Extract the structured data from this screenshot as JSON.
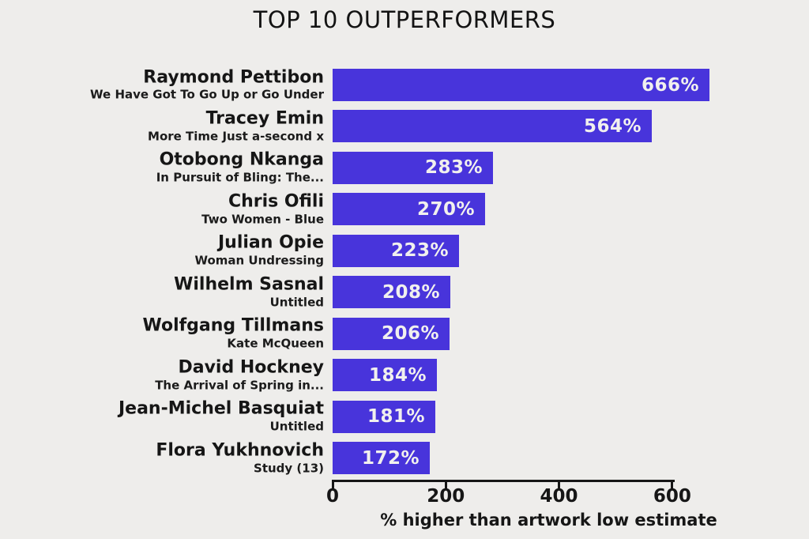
{
  "title": "TOP 10 OUTPERFORMERS",
  "colors": {
    "background": "#eeedeb",
    "bar": "#4834db",
    "bar_value_text": "#f1f0ee",
    "text": "#161616"
  },
  "chart_data": {
    "type": "bar",
    "orientation": "horizontal",
    "title": "TOP 10 OUTPERFORMERS",
    "xlabel": "% higher than artwork low estimate",
    "ylabel": "",
    "xlim": [
      0,
      765
    ],
    "xticks": [
      0,
      200,
      400,
      600
    ],
    "xtick_labels": [
      "0",
      "200",
      "400",
      "600"
    ],
    "grid": false,
    "legend": false,
    "categories": [
      "Raymond Pettibon",
      "Tracey Emin",
      "Otobong Nkanga",
      "Chris Ofili",
      "Julian Opie",
      "Wilhelm Sasnal",
      "Wolfgang Tillmans",
      "David Hockney",
      "Jean-Michel Basquiat",
      "Flora Yukhnovich"
    ],
    "values": [
      666,
      564,
      283,
      270,
      223,
      208,
      206,
      184,
      181,
      172
    ],
    "bars": [
      {
        "artist": "Raymond Pettibon",
        "artwork": "We Have Got To Go Up or Go Under",
        "value": 666,
        "label": "666%"
      },
      {
        "artist": "Tracey Emin",
        "artwork": "More Time Just a-second x",
        "value": 564,
        "label": "564%"
      },
      {
        "artist": "Otobong Nkanga",
        "artwork": "In Pursuit of Bling: The...",
        "value": 283,
        "label": "283%"
      },
      {
        "artist": "Chris Ofili",
        "artwork": "Two Women - Blue",
        "value": 270,
        "label": "270%"
      },
      {
        "artist": "Julian Opie",
        "artwork": "Woman Undressing",
        "value": 223,
        "label": "223%"
      },
      {
        "artist": "Wilhelm Sasnal",
        "artwork": "Untitled",
        "value": 208,
        "label": "208%"
      },
      {
        "artist": "Wolfgang Tillmans",
        "artwork": "Kate McQueen",
        "value": 206,
        "label": "206%"
      },
      {
        "artist": "David Hockney",
        "artwork": "The Arrival of Spring in...",
        "value": 184,
        "label": "184%"
      },
      {
        "artist": "Jean-Michel Basquiat",
        "artwork": "Untitled",
        "value": 181,
        "label": "181%"
      },
      {
        "artist": "Flora Yukhnovich",
        "artwork": "Study (13)",
        "value": 172,
        "label": "172%"
      }
    ]
  }
}
